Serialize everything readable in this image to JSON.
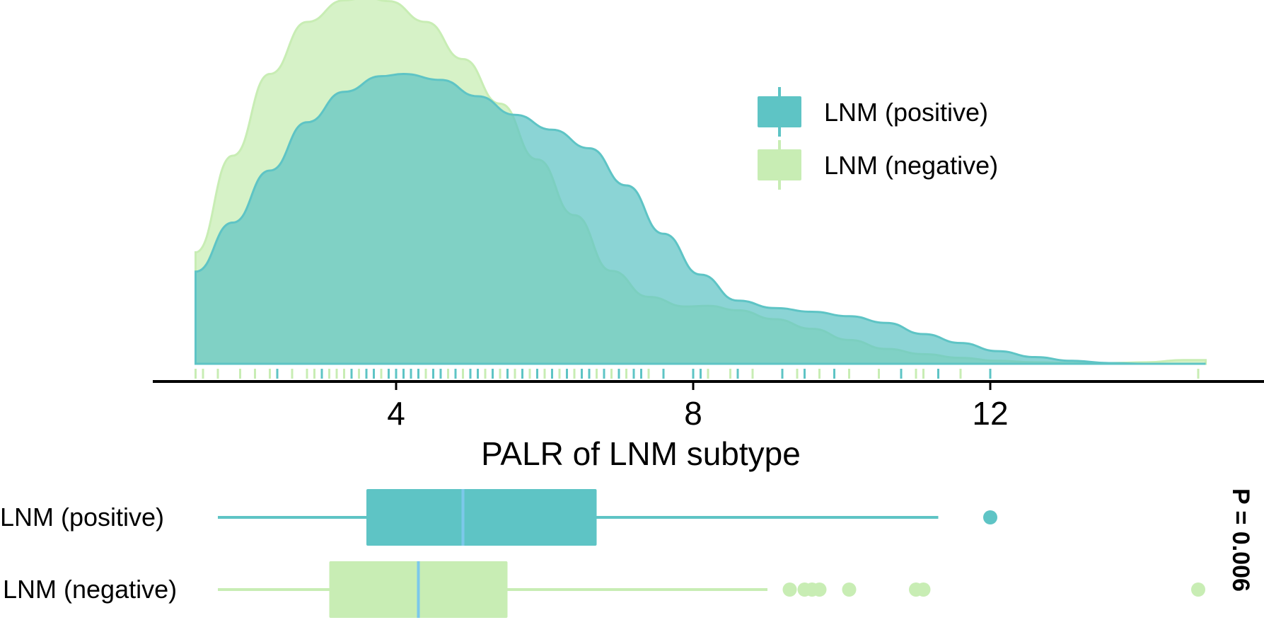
{
  "chart_data": {
    "type": "density",
    "xlabel": "PALR of LNM subtype",
    "ticks": [
      4,
      8,
      12
    ],
    "xlim": [
      0.6,
      15.2
    ],
    "legend": {
      "placement": "top-right",
      "entries": [
        {
          "label": "LNM (positive)",
          "color": "#5ec4c5"
        },
        {
          "label": "LNM (negative)",
          "color": "#c8edb4"
        }
      ]
    },
    "series": [
      {
        "name": "LNM (positive)",
        "color": "#5ec4c5",
        "density_x": [
          1.3,
          1.8,
          2.3,
          2.8,
          3.3,
          3.8,
          4.1,
          4.6,
          5.1,
          5.6,
          6.1,
          6.6,
          7.1,
          7.6,
          8.1,
          8.6,
          9.1,
          9.6,
          10.1,
          10.6,
          11.1,
          11.6,
          12.1,
          12.6,
          13.1,
          13.6,
          14.1,
          14.9
        ],
        "density_y": [
          0.124,
          0.19,
          0.26,
          0.325,
          0.366,
          0.387,
          0.39,
          0.382,
          0.36,
          0.335,
          0.315,
          0.29,
          0.24,
          0.175,
          0.12,
          0.085,
          0.075,
          0.07,
          0.064,
          0.055,
          0.04,
          0.028,
          0.017,
          0.009,
          0.004,
          0.001,
          0.0,
          0.0
        ],
        "box": {
          "min": 1.6,
          "q1": 3.6,
          "median": 4.9,
          "q3": 6.7,
          "max": 11.3
        },
        "outliers": [
          12.0
        ]
      },
      {
        "name": "LNM (negative)",
        "color": "#c8edb4",
        "density_x": [
          1.3,
          1.8,
          2.3,
          2.8,
          3.3,
          3.6,
          3.9,
          4.4,
          4.9,
          5.4,
          5.9,
          6.4,
          6.9,
          7.4,
          7.9,
          8.2,
          8.6,
          9.1,
          9.6,
          10.1,
          10.6,
          11.1,
          11.6,
          12.1,
          12.6,
          13.1,
          13.6,
          14.1,
          14.6,
          14.9
        ],
        "density_y": [
          0.15,
          0.28,
          0.39,
          0.46,
          0.489,
          0.493,
          0.488,
          0.46,
          0.41,
          0.35,
          0.275,
          0.2,
          0.125,
          0.09,
          0.077,
          0.078,
          0.072,
          0.06,
          0.047,
          0.032,
          0.02,
          0.013,
          0.008,
          0.004,
          0.002,
          0.001,
          0.001,
          0.002,
          0.005,
          0.005
        ],
        "box": {
          "min": 1.6,
          "q1": 3.1,
          "median": 4.3,
          "q3": 5.5,
          "max": 9.0
        },
        "outliers": [
          9.3,
          9.5,
          9.6,
          9.7,
          10.1,
          11.0,
          11.1,
          14.8
        ]
      }
    ],
    "rug": {
      "positive": [
        2.4,
        3.0,
        3.4,
        3.6,
        3.7,
        3.9,
        4.0,
        4.1,
        4.2,
        4.3,
        4.5,
        4.6,
        4.8,
        5.0,
        5.1,
        5.3,
        5.5,
        5.7,
        5.9,
        6.1,
        6.3,
        6.5,
        6.6,
        6.8,
        7.0,
        7.2,
        7.3,
        7.6,
        8.0,
        8.1,
        8.6,
        9.2,
        9.5,
        9.9,
        10.8,
        11.3,
        12.0
      ],
      "negative": [
        1.3,
        1.4,
        1.6,
        1.9,
        2.1,
        2.3,
        2.6,
        2.8,
        2.9,
        3.1,
        3.2,
        3.3,
        3.5,
        3.6,
        3.7,
        3.8,
        4.0,
        4.1,
        4.2,
        4.4,
        4.5,
        4.7,
        4.9,
        5.1,
        5.2,
        5.4,
        5.6,
        5.8,
        6.0,
        6.2,
        6.4,
        6.7,
        6.9,
        7.1,
        7.4,
        8.2,
        8.5,
        8.8,
        9.2,
        9.4,
        9.7,
        10.1,
        10.5,
        11.0,
        11.1,
        11.6,
        14.8
      ]
    },
    "box_labels": [
      "LNM (positive)",
      "LNM (negative)"
    ],
    "annotation": "P = 0.006"
  }
}
